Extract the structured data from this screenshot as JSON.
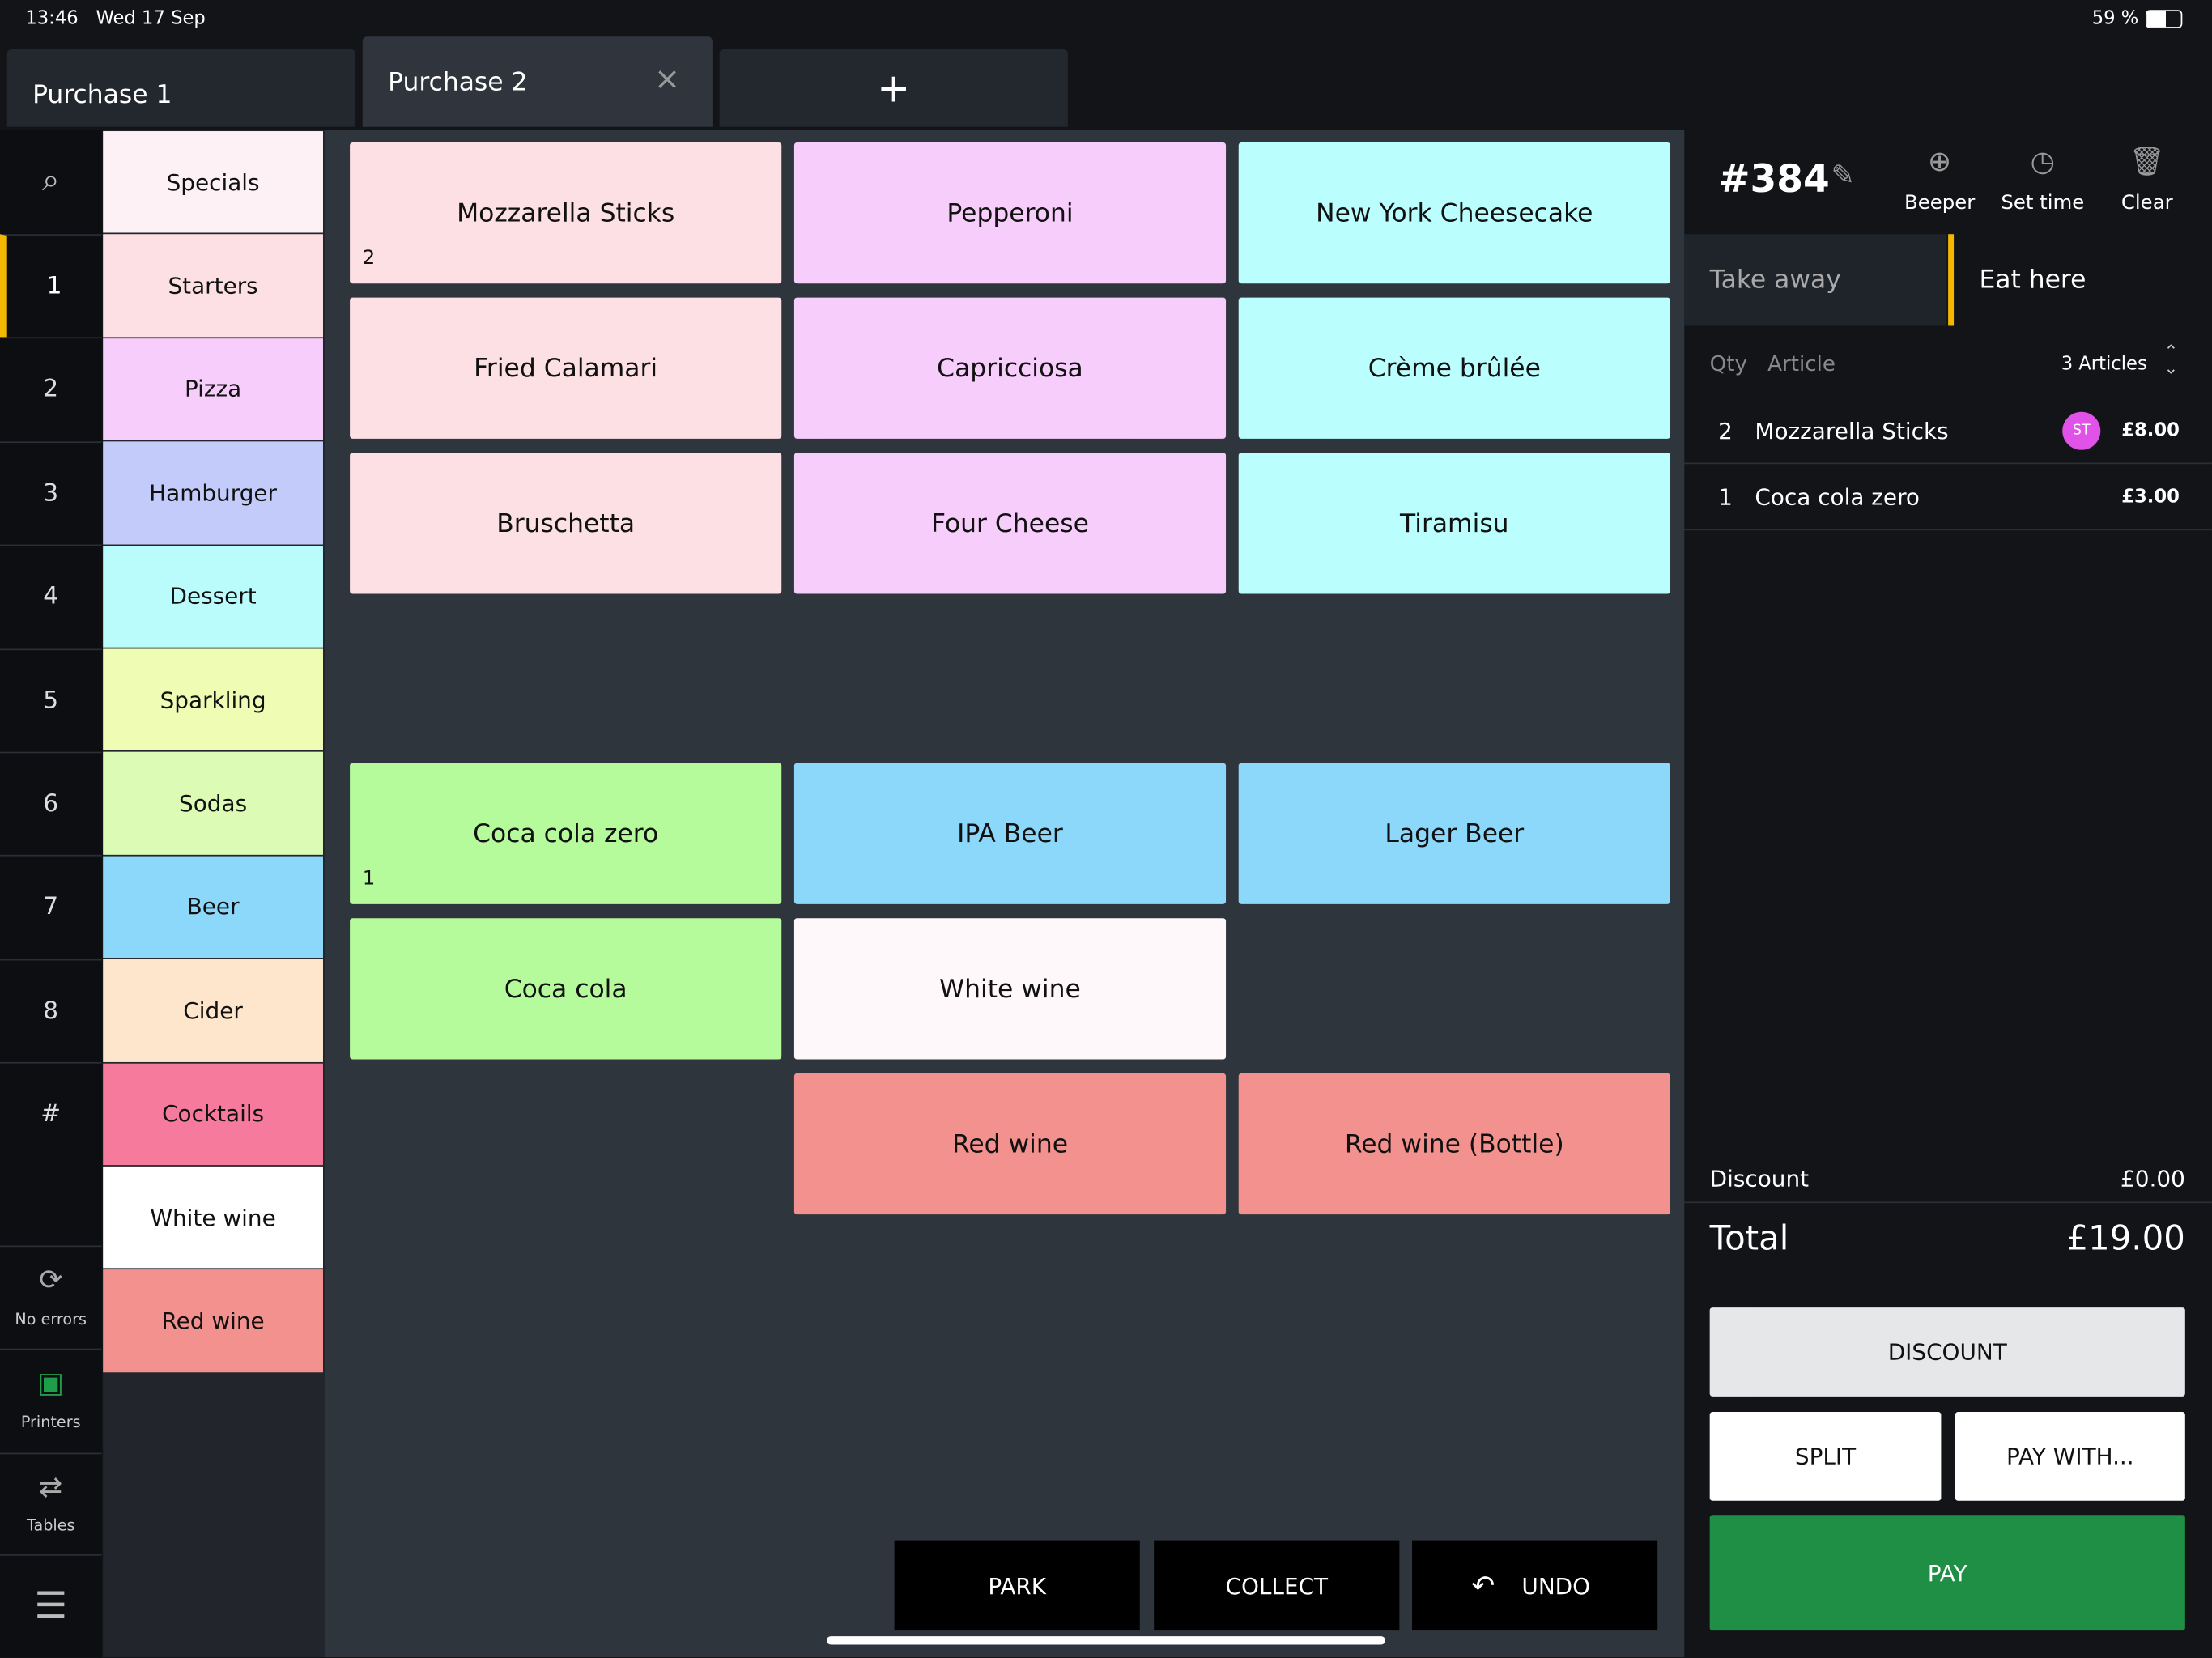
{
  "status_bar": {
    "time": "13:46",
    "date": "Wed 17 Sep",
    "battery": "59 %"
  },
  "tabs": [
    {
      "label": "Purchase 1"
    },
    {
      "label": "Purchase 2"
    },
    {
      "label": "+"
    }
  ],
  "side_keys": [
    "1",
    "2",
    "3",
    "4",
    "5",
    "6",
    "7",
    "8",
    "#"
  ],
  "side_tools": [
    "No errors",
    "Printers",
    "Tables"
  ],
  "categories": [
    {
      "label": "Specials",
      "color": "#fdf1f6"
    },
    {
      "label": "Starters",
      "color": "#fde0e3"
    },
    {
      "label": "Pizza",
      "color": "#f7cdfb"
    },
    {
      "label": "Hamburger",
      "color": "#c3cbfb"
    },
    {
      "label": "Dessert",
      "color": "#bafbfc"
    },
    {
      "label": "Sparkling",
      "color": "#effcb4"
    },
    {
      "label": "Sodas",
      "color": "#dcfbb5"
    },
    {
      "label": "Beer",
      "color": "#8cd8fb"
    },
    {
      "label": "Cider",
      "color": "#fde6cc"
    },
    {
      "label": "Cocktails",
      "color": "#f57a9c"
    },
    {
      "label": "White wine",
      "color": "#ffffff"
    },
    {
      "label": "Red wine",
      "color": "#f3918e"
    }
  ],
  "product_grid": [
    [
      {
        "label": "Mozzarella Sticks",
        "color": "#fde0e3",
        "count": "2"
      },
      {
        "label": "Pepperoni",
        "color": "#f7cdfb"
      },
      {
        "label": "New York Cheesecake",
        "color": "#bafefe"
      }
    ],
    [
      {
        "label": "Fried Calamari",
        "color": "#fde0e3"
      },
      {
        "label": "Capricciosa",
        "color": "#f7cdfb"
      },
      {
        "label": "Crème brûlée",
        "color": "#bafefe"
      }
    ],
    [
      {
        "label": "Bruschetta",
        "color": "#fde0e3"
      },
      {
        "label": "Four Cheese",
        "color": "#f7cdfb"
      },
      {
        "label": "Tiramisu",
        "color": "#bafefe"
      }
    ],
    [
      null,
      null,
      null
    ],
    [
      {
        "label": "Coca cola zero",
        "color": "#b5fb9c",
        "count": "1"
      },
      {
        "label": "IPA Beer",
        "color": "#8cd8fb"
      },
      {
        "label": "Lager Beer",
        "color": "#8cd8fb"
      }
    ],
    [
      {
        "label": "Coca cola",
        "color": "#b5fb9c"
      },
      {
        "label": "White wine",
        "color": "#fff8fa"
      },
      null
    ],
    [
      null,
      {
        "label": "Red wine",
        "color": "#f3918e"
      },
      {
        "label": "Red wine (Bottle)",
        "color": "#f3918e"
      }
    ]
  ],
  "bottom_actions": [
    "PARK",
    "COLLECT",
    "UNDO"
  ],
  "order": {
    "number": "#384",
    "actions": [
      "Beeper",
      "Set time",
      "Clear"
    ],
    "modes": [
      "Take away",
      "Eat here"
    ],
    "columns": {
      "qty": "Qty",
      "article": "Article",
      "count": "3 Articles"
    },
    "items": [
      {
        "qty": "2",
        "name": "Mozzarella Sticks",
        "badge": "ST",
        "price": "£8.00"
      },
      {
        "qty": "1",
        "name": "Coca cola zero",
        "price": "£3.00"
      }
    ],
    "discount_label": "Discount",
    "discount": "£0.00",
    "total_label": "Total",
    "total": "£19.00",
    "buttons": [
      "DISCOUNT",
      "SPLIT",
      "PAY WITH...",
      "PAY"
    ]
  }
}
